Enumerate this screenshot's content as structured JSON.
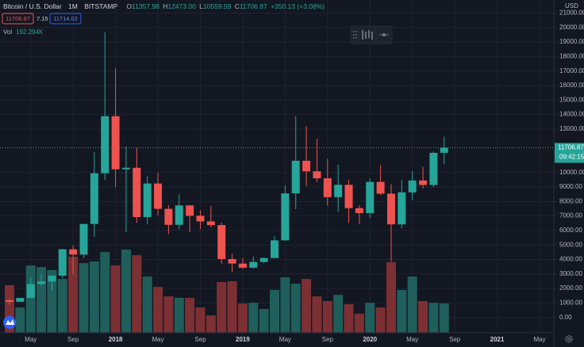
{
  "header": {
    "symbol": "Bitcoin / U.S. Dollar",
    "interval": "1M",
    "exchange": "BITSTAMP",
    "ohlc": [
      {
        "key": "O",
        "value": "11357.98"
      },
      {
        "key": "H",
        "value": "12473.00"
      },
      {
        "key": "L",
        "value": "10559.59"
      },
      {
        "key": "C",
        "value": "11706.87"
      }
    ],
    "change": "+350.13 (+3.08%)",
    "bid": "11706.87",
    "spread": "7.15",
    "ask": "11714.02",
    "volume_key": "Vol",
    "volume_value": "192.294K",
    "currency": "USD",
    "last_price": "11706.87",
    "countdown": "09:42:15"
  },
  "chart_data": {
    "type": "candlestick",
    "categories": [
      null,
      null,
      "May",
      null,
      null,
      null,
      "Sep",
      null,
      null,
      null,
      "2018",
      null,
      null,
      null,
      "May",
      null,
      null,
      null,
      "Sep",
      null,
      null,
      null,
      "2019",
      null,
      null,
      null,
      "May",
      null,
      null,
      null,
      "Sep",
      null,
      null,
      null,
      "2020",
      null,
      null,
      null,
      "May",
      null,
      null,
      null,
      "Sep",
      null,
      null,
      null,
      "2021",
      null,
      null,
      null,
      "May"
    ],
    "open": [
      1190,
      1079,
      1348,
      2300,
      2480,
      2875,
      4703,
      4338,
      6450,
      9946,
      13880,
      10221,
      10326,
      6926,
      9240,
      7494,
      6390,
      7730,
      7015,
      6626,
      6370,
      4030,
      3720,
      3430,
      3830,
      4100,
      5320,
      8560,
      10810,
      10080,
      9600,
      8300,
      9150,
      7540,
      7200,
      9350,
      8540,
      6420,
      8630,
      9450,
      9140,
      11357.98,
      null,
      null,
      null,
      null,
      null,
      null,
      null,
      null,
      null
    ],
    "high": [
      1280,
      1350,
      2760,
      2980,
      2920,
      4736,
      4980,
      6470,
      11400,
      19666,
      17176,
      11789,
      11677,
      9759,
      9990,
      7758,
      8490,
      7760,
      7400,
      7680,
      6560,
      4400,
      4090,
      4210,
      4140,
      5600,
      9100,
      13880,
      13200,
      12320,
      10950,
      10540,
      9510,
      7750,
      9590,
      10500,
      9190,
      9470,
      10080,
      10400,
      11450,
      12473,
      null,
      null,
      null,
      null,
      null,
      null,
      null,
      null,
      null
    ],
    "low": [
      891,
      1060,
      1348,
      2200,
      1830,
      2670,
      2972,
      4110,
      5560,
      9500,
      9005,
      5873,
      6530,
      6430,
      7030,
      5750,
      6070,
      5880,
      6100,
      6200,
      3670,
      3120,
      3350,
      3380,
      3750,
      4080,
      5300,
      7470,
      9070,
      9340,
      7710,
      7300,
      6520,
      6430,
      6860,
      8450,
      3850,
      6150,
      8100,
      8900,
      8990,
      10559.59,
      null,
      null,
      null,
      null,
      null,
      null,
      null,
      null,
      null
    ],
    "close": [
      1079,
      1348,
      2300,
      2480,
      2875,
      4703,
      4338,
      6450,
      9946,
      13880,
      10221,
      10326,
      6926,
      9240,
      7494,
      6390,
      7730,
      7015,
      6626,
      6370,
      4030,
      3720,
      3430,
      3830,
      4100,
      5320,
      8560,
      10810,
      10080,
      9600,
      8300,
      9150,
      7540,
      7200,
      9350,
      8540,
      6420,
      8630,
      9450,
      9140,
      11356.74,
      11706.87,
      null,
      null,
      null,
      null,
      null,
      null,
      null,
      null,
      null
    ],
    "volume": [
      312000,
      166000,
      442000,
      431000,
      411000,
      353000,
      499000,
      457000,
      468000,
      530000,
      442000,
      546000,
      509000,
      369000,
      301000,
      239000,
      229000,
      229000,
      166000,
      114000,
      333000,
      338000,
      192000,
      197000,
      156000,
      281000,
      364000,
      322000,
      353000,
      239000,
      208000,
      249000,
      187000,
      125000,
      197000,
      166000,
      463000,
      281000,
      369000,
      208000,
      197000,
      192294,
      null,
      null,
      null,
      null,
      null,
      null,
      null,
      null,
      null
    ],
    "up_color": "#26a69a",
    "down_color": "#ef5350",
    "volume_up_color": "#1f5e5a",
    "volume_down_color": "#7c3033",
    "ylim": [
      -1000,
      21900
    ],
    "yticks": [
      {
        "value": 0,
        "label": "0.00"
      },
      {
        "value": 1000,
        "label": "1000.00"
      },
      {
        "value": 2000,
        "label": "2000.00"
      },
      {
        "value": 3000,
        "label": "3000.00"
      },
      {
        "value": 4000,
        "label": "4000.00"
      },
      {
        "value": 5000,
        "label": "5000.00"
      },
      {
        "value": 6000,
        "label": "6000.00"
      },
      {
        "value": 7000,
        "label": "7000.00"
      },
      {
        "value": 8000,
        "label": "8000.00"
      },
      {
        "value": 9000,
        "label": "9000.00"
      },
      {
        "value": 10000,
        "label": "10000.00"
      },
      {
        "value": 13000,
        "label": "13000.00"
      },
      {
        "value": 14000,
        "label": "14000.00"
      },
      {
        "value": 15000,
        "label": "15000.00"
      },
      {
        "value": 16000,
        "label": "16000.00"
      },
      {
        "value": 17000,
        "label": "17000.00"
      },
      {
        "value": 18000,
        "label": "18000.00"
      },
      {
        "value": 19000,
        "label": "19000.00"
      },
      {
        "value": 20000,
        "label": "20000.00"
      },
      {
        "value": 21000,
        "label": "21000.00"
      }
    ],
    "grid": true
  }
}
